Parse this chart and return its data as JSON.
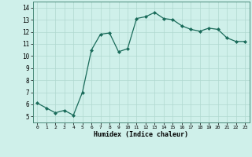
{
  "x": [
    0,
    1,
    2,
    3,
    4,
    5,
    6,
    7,
    8,
    9,
    10,
    11,
    12,
    13,
    14,
    15,
    16,
    17,
    18,
    19,
    20,
    21,
    22,
    23
  ],
  "y": [
    6.1,
    5.7,
    5.3,
    5.5,
    5.1,
    7.0,
    10.5,
    11.8,
    11.9,
    10.35,
    10.6,
    13.1,
    13.25,
    13.6,
    13.1,
    13.0,
    12.5,
    12.2,
    12.05,
    12.3,
    12.2,
    11.5,
    11.2,
    11.2
  ],
  "xlabel": "Humidex (Indice chaleur)",
  "xlim": [
    -0.5,
    23.5
  ],
  "ylim": [
    4.5,
    14.5
  ],
  "yticks": [
    5,
    6,
    7,
    8,
    9,
    10,
    11,
    12,
    13,
    14
  ],
  "xticks": [
    0,
    1,
    2,
    3,
    4,
    5,
    6,
    7,
    8,
    9,
    10,
    11,
    12,
    13,
    14,
    15,
    16,
    17,
    18,
    19,
    20,
    21,
    22,
    23
  ],
  "line_color": "#1a6b5a",
  "marker_color": "#1a6b5a",
  "bg_color": "#cff0ea",
  "grid_color": "#b0d8d0"
}
